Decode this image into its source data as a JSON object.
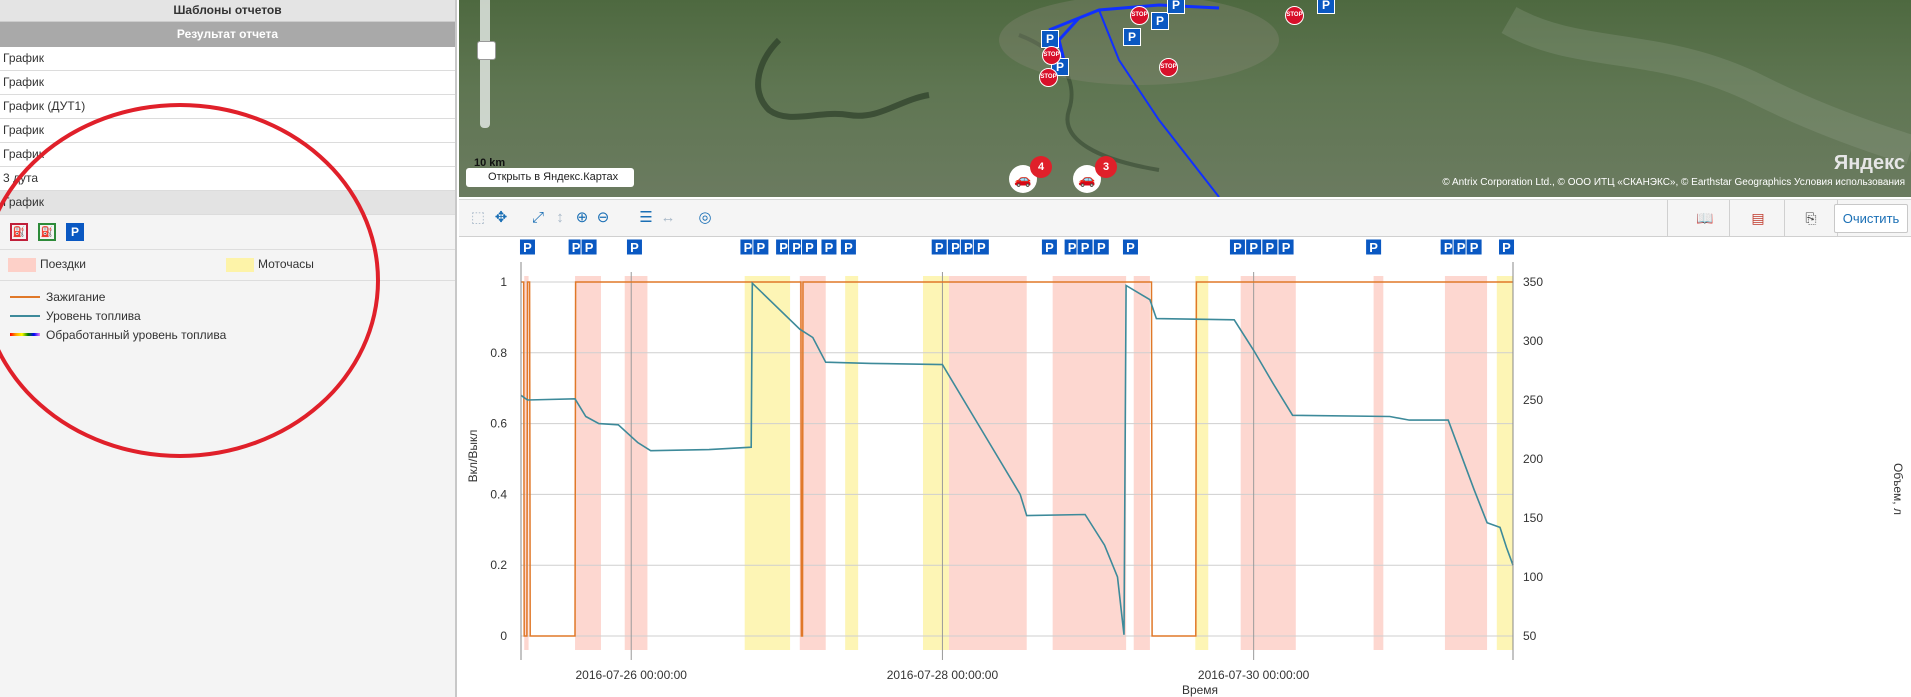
{
  "left_panel": {
    "templates_title": "Шаблоны отчетов",
    "result_title": "Результат отчета",
    "rows": [
      "График",
      "График",
      "График (ДУТ1)",
      "График",
      "График",
      "3 дута",
      "График"
    ],
    "legend_areas": [
      {
        "label": "Поездки",
        "color": "#fdd0c8"
      },
      {
        "label": "Моточасы",
        "color": "#fdf3a8"
      }
    ],
    "legend_lines": [
      {
        "label": "Зажигание",
        "color": "#e07828"
      },
      {
        "label": "Уровень топлива",
        "color": "#3d8a9a"
      },
      {
        "label": "Обработанный уровень топлива",
        "color": "rainbow"
      }
    ],
    "icon_buttons": [
      "fuel-drain-icon",
      "fuel-fill-icon",
      "parking-icon"
    ]
  },
  "map": {
    "scale_label": "10 km",
    "open_label": "Открыть в Яндекс.Картах",
    "logo": "Яндекс",
    "copyright": "© Antrix Corporation Ltd., © ООО ИТЦ «СКАНЭКС», © Earthstar Geographics  Условия использования",
    "clusters": [
      "4",
      "3"
    ],
    "parking_glyph": "P",
    "stop_glyph": "STOP"
  },
  "toolbar": {
    "clear_label": "Очистить",
    "tools": [
      "select-icon",
      "pan-icon",
      "fit-icon",
      "y-zoom-icon",
      "zoom-in-icon",
      "zoom-out-icon",
      "list-icon",
      "x-scroll-icon",
      "target-icon"
    ],
    "right_tools": [
      "book-icon",
      "pdf-icon",
      "export-icon",
      "print-icon"
    ]
  },
  "chart_data": {
    "type": "line",
    "xlabel": "Время",
    "ylabel_left": "Вкл/Выкл",
    "ylabel_right": "Объем, л",
    "x_range": [
      "2016-07-25 07:00",
      "2016-07-31 16:00"
    ],
    "x_ticks": [
      "2016-07-26  00:00:00",
      "2016-07-28  00:00:00",
      "2016-07-30  00:00:00"
    ],
    "y_left_range": [
      0,
      1
    ],
    "y_left_ticks": [
      "0",
      "0.2",
      "0.4",
      "0.6",
      "0.8",
      "1"
    ],
    "y_right_range": [
      50,
      350
    ],
    "y_right_ticks": [
      "50",
      "100",
      "150",
      "200",
      "250",
      "300",
      "350"
    ],
    "grid": true,
    "series": [
      {
        "name": "Зажигание",
        "color": "#e07828",
        "points": [
          [
            "2016-07-25 07:00",
            1
          ],
          [
            "2016-07-25 07:25",
            1
          ],
          [
            "2016-07-25 07:30",
            0
          ],
          [
            "2016-07-25 07:55",
            0
          ],
          [
            "2016-07-25 08:00",
            1
          ],
          [
            "2016-07-25 08:20",
            1
          ],
          [
            "2016-07-25 08:25",
            0
          ],
          [
            "2016-07-25 15:20",
            0
          ],
          [
            "2016-07-25 15:25",
            1
          ],
          [
            "2016-07-27 02:10",
            1
          ],
          [
            "2016-07-27 02:15",
            0
          ],
          [
            "2016-07-27 02:25",
            0
          ],
          [
            "2016-07-27 02:30",
            1
          ],
          [
            "2016-07-29 08:15",
            1
          ],
          [
            "2016-07-29 08:20",
            0
          ],
          [
            "2016-07-29 15:05",
            0
          ],
          [
            "2016-07-29 15:10",
            1
          ],
          [
            "2016-07-31 16:00",
            1
          ]
        ]
      },
      {
        "name": "Уровень топлива",
        "color": "#3d8a9a",
        "points": [
          [
            "2016-07-25 07:00",
            254
          ],
          [
            "2016-07-25 08:00",
            250
          ],
          [
            "2016-07-25 15:20",
            251
          ],
          [
            "2016-07-25 17:00",
            236
          ],
          [
            "2016-07-25 19:00",
            230
          ],
          [
            "2016-07-25 22:00",
            229
          ],
          [
            "2016-07-26 01:00",
            214
          ],
          [
            "2016-07-26 03:00",
            207
          ],
          [
            "2016-07-26 12:00",
            208
          ],
          [
            "2016-07-26 18:30",
            210
          ],
          [
            "2016-07-26 18:40",
            349
          ],
          [
            "2016-07-27 02:00",
            310
          ],
          [
            "2016-07-27 04:00",
            303
          ],
          [
            "2016-07-27 06:00",
            282
          ],
          [
            "2016-07-27 13:00",
            281
          ],
          [
            "2016-07-28 00:00",
            280
          ],
          [
            "2016-07-28 06:00",
            225
          ],
          [
            "2016-07-28 12:00",
            170
          ],
          [
            "2016-07-28 13:00",
            152
          ],
          [
            "2016-07-28 22:00",
            153
          ],
          [
            "2016-07-29 01:00",
            127
          ],
          [
            "2016-07-29 03:00",
            100
          ],
          [
            "2016-07-29 04:00",
            51
          ],
          [
            "2016-07-29 04:20",
            347
          ],
          [
            "2016-07-29 08:00",
            335
          ],
          [
            "2016-07-29 09:00",
            319
          ],
          [
            "2016-07-29 21:00",
            318
          ],
          [
            "2016-07-30 00:00",
            292
          ],
          [
            "2016-07-30 03:00",
            264
          ],
          [
            "2016-07-30 06:00",
            237
          ],
          [
            "2016-07-30 21:00",
            236
          ],
          [
            "2016-07-31 00:00",
            233
          ],
          [
            "2016-07-31 06:00",
            233
          ],
          [
            "2016-07-31 10:00",
            174
          ],
          [
            "2016-07-31 12:00",
            146
          ],
          [
            "2016-07-31 14:00",
            142
          ],
          [
            "2016-07-31 15:00",
            125
          ],
          [
            "2016-07-31 16:00",
            110
          ]
        ]
      }
    ],
    "bands": [
      {
        "from": "2016-07-25 07:30",
        "to": "2016-07-25 08:10",
        "kind": "Поездки"
      },
      {
        "from": "2016-07-25 15:20",
        "to": "2016-07-25 19:20",
        "kind": "Поездки"
      },
      {
        "from": "2016-07-25 23:00",
        "to": "2016-07-26 02:30",
        "kind": "Поездки"
      },
      {
        "from": "2016-07-26 17:30",
        "to": "2016-07-27 00:30",
        "kind": "Моточасы"
      },
      {
        "from": "2016-07-27 02:00",
        "to": "2016-07-27 06:00",
        "kind": "Поездки"
      },
      {
        "from": "2016-07-27 09:00",
        "to": "2016-07-27 11:00",
        "kind": "Моточасы"
      },
      {
        "from": "2016-07-27 21:00",
        "to": "2016-07-28 01:00",
        "kind": "Моточасы"
      },
      {
        "from": "2016-07-28 01:00",
        "to": "2016-07-28 13:00",
        "kind": "Поездки"
      },
      {
        "from": "2016-07-28 17:00",
        "to": "2016-07-29 04:20",
        "kind": "Поездки"
      },
      {
        "from": "2016-07-29 05:30",
        "to": "2016-07-29 08:00",
        "kind": "Поездки"
      },
      {
        "from": "2016-07-29 15:00",
        "to": "2016-07-29 17:00",
        "kind": "Моточасы"
      },
      {
        "from": "2016-07-29 22:00",
        "to": "2016-07-30 06:30",
        "kind": "Поездки"
      },
      {
        "from": "2016-07-30 18:30",
        "to": "2016-07-30 20:00",
        "kind": "Поездки"
      },
      {
        "from": "2016-07-31 05:30",
        "to": "2016-07-31 12:00",
        "kind": "Поездки"
      },
      {
        "from": "2016-07-31 13:30",
        "to": "2016-07-31 16:00",
        "kind": "Моточасы"
      }
    ],
    "parking_markers": [
      "2016-07-25 08:00",
      "2016-07-25 15:30",
      "2016-07-25 17:30",
      "2016-07-26 00:30",
      "2016-07-26 18:00",
      "2016-07-26 20:00",
      "2016-07-26 23:30",
      "2016-07-27 01:30",
      "2016-07-27 03:30",
      "2016-07-27 06:30",
      "2016-07-27 09:30",
      "2016-07-27 23:30",
      "2016-07-28 02:00",
      "2016-07-28 04:00",
      "2016-07-28 06:00",
      "2016-07-28 16:30",
      "2016-07-28 20:00",
      "2016-07-28 22:00",
      "2016-07-29 00:30",
      "2016-07-29 05:00",
      "2016-07-29 21:30",
      "2016-07-30 00:00",
      "2016-07-30 02:30",
      "2016-07-30 05:00",
      "2016-07-30 18:30",
      "2016-07-31 06:00",
      "2016-07-31 08:00",
      "2016-07-31 10:00",
      "2016-07-31 15:00"
    ]
  }
}
